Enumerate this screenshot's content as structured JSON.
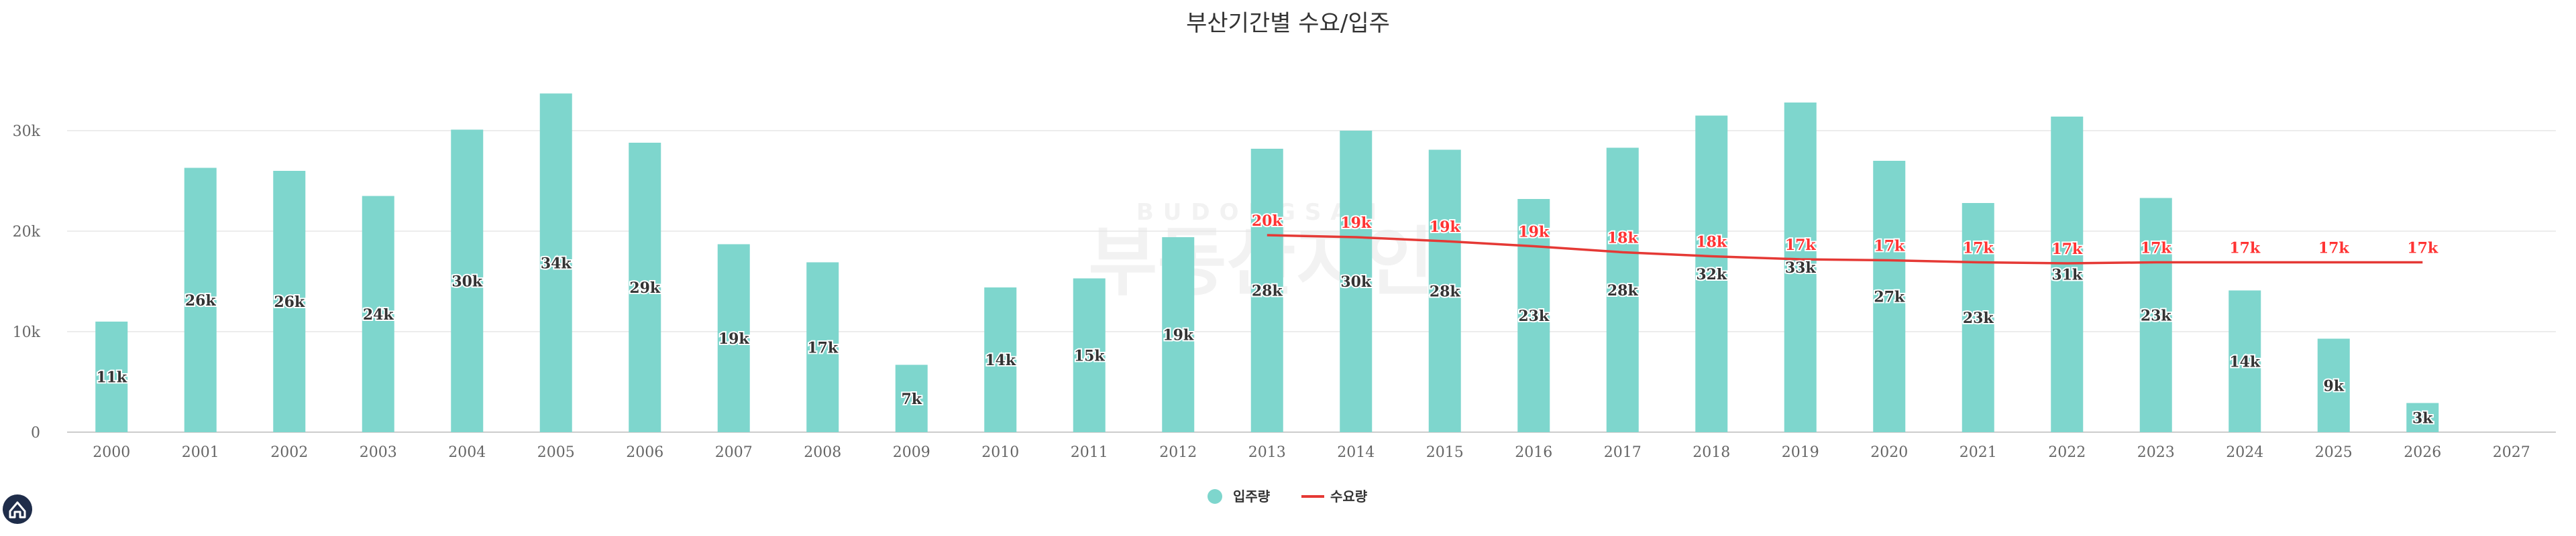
{
  "chart_data": {
    "type": "bar",
    "title": "부산기간별 수요/입주",
    "categories": [
      "2000",
      "2001",
      "2002",
      "2003",
      "2004",
      "2005",
      "2006",
      "2007",
      "2008",
      "2009",
      "2010",
      "2011",
      "2012",
      "2013",
      "2014",
      "2015",
      "2016",
      "2017",
      "2018",
      "2019",
      "2020",
      "2021",
      "2022",
      "2023",
      "2024",
      "2025",
      "2026",
      "2027"
    ],
    "ylim": [
      0,
      35000
    ],
    "yticks": [
      0,
      10000,
      20000,
      30000
    ],
    "ytick_labels": [
      "0",
      "10k",
      "20k",
      "30k"
    ],
    "grid": true,
    "legend_position": "bottom-center",
    "series": [
      {
        "name": "입주량",
        "type": "bar",
        "color": "#7ed6cd",
        "values": [
          11000,
          26300,
          26000,
          23500,
          30100,
          33700,
          28800,
          18700,
          16900,
          6700,
          14400,
          15300,
          19400,
          28200,
          30000,
          28100,
          23200,
          28300,
          31500,
          32800,
          27000,
          22800,
          31400,
          23300,
          14100,
          9300,
          2900,
          null
        ],
        "labels": [
          "11k",
          "26k",
          "26k",
          "24k",
          "30k",
          "34k",
          "29k",
          "19k",
          "17k",
          "7k",
          "14k",
          "15k",
          "19k",
          "28k",
          "30k",
          "28k",
          "23k",
          "28k",
          "32k",
          "33k",
          "27k",
          "23k",
          "31k",
          "23k",
          "14k",
          "9k",
          "3k",
          ""
        ]
      },
      {
        "name": "수요량",
        "type": "line",
        "color": "#e53935",
        "values": [
          null,
          null,
          null,
          null,
          null,
          null,
          null,
          null,
          null,
          null,
          null,
          null,
          null,
          19600,
          19400,
          19000,
          18500,
          17900,
          17500,
          17200,
          17100,
          16900,
          16800,
          16900,
          16900,
          16900,
          16900,
          null
        ],
        "labels": [
          "",
          "",
          "",
          "",
          "",
          "",
          "",
          "",
          "",
          "",
          "",
          "",
          "",
          "20k",
          "19k",
          "19k",
          "19k",
          "18k",
          "18k",
          "17k",
          "17k",
          "17k",
          "17k",
          "17k",
          "17k",
          "17k",
          "17k",
          ""
        ]
      }
    ]
  },
  "watermark": {
    "top_text": "BUDONGSAN",
    "main_text": "부동산지인"
  },
  "logo": {
    "icon": "home-icon"
  }
}
